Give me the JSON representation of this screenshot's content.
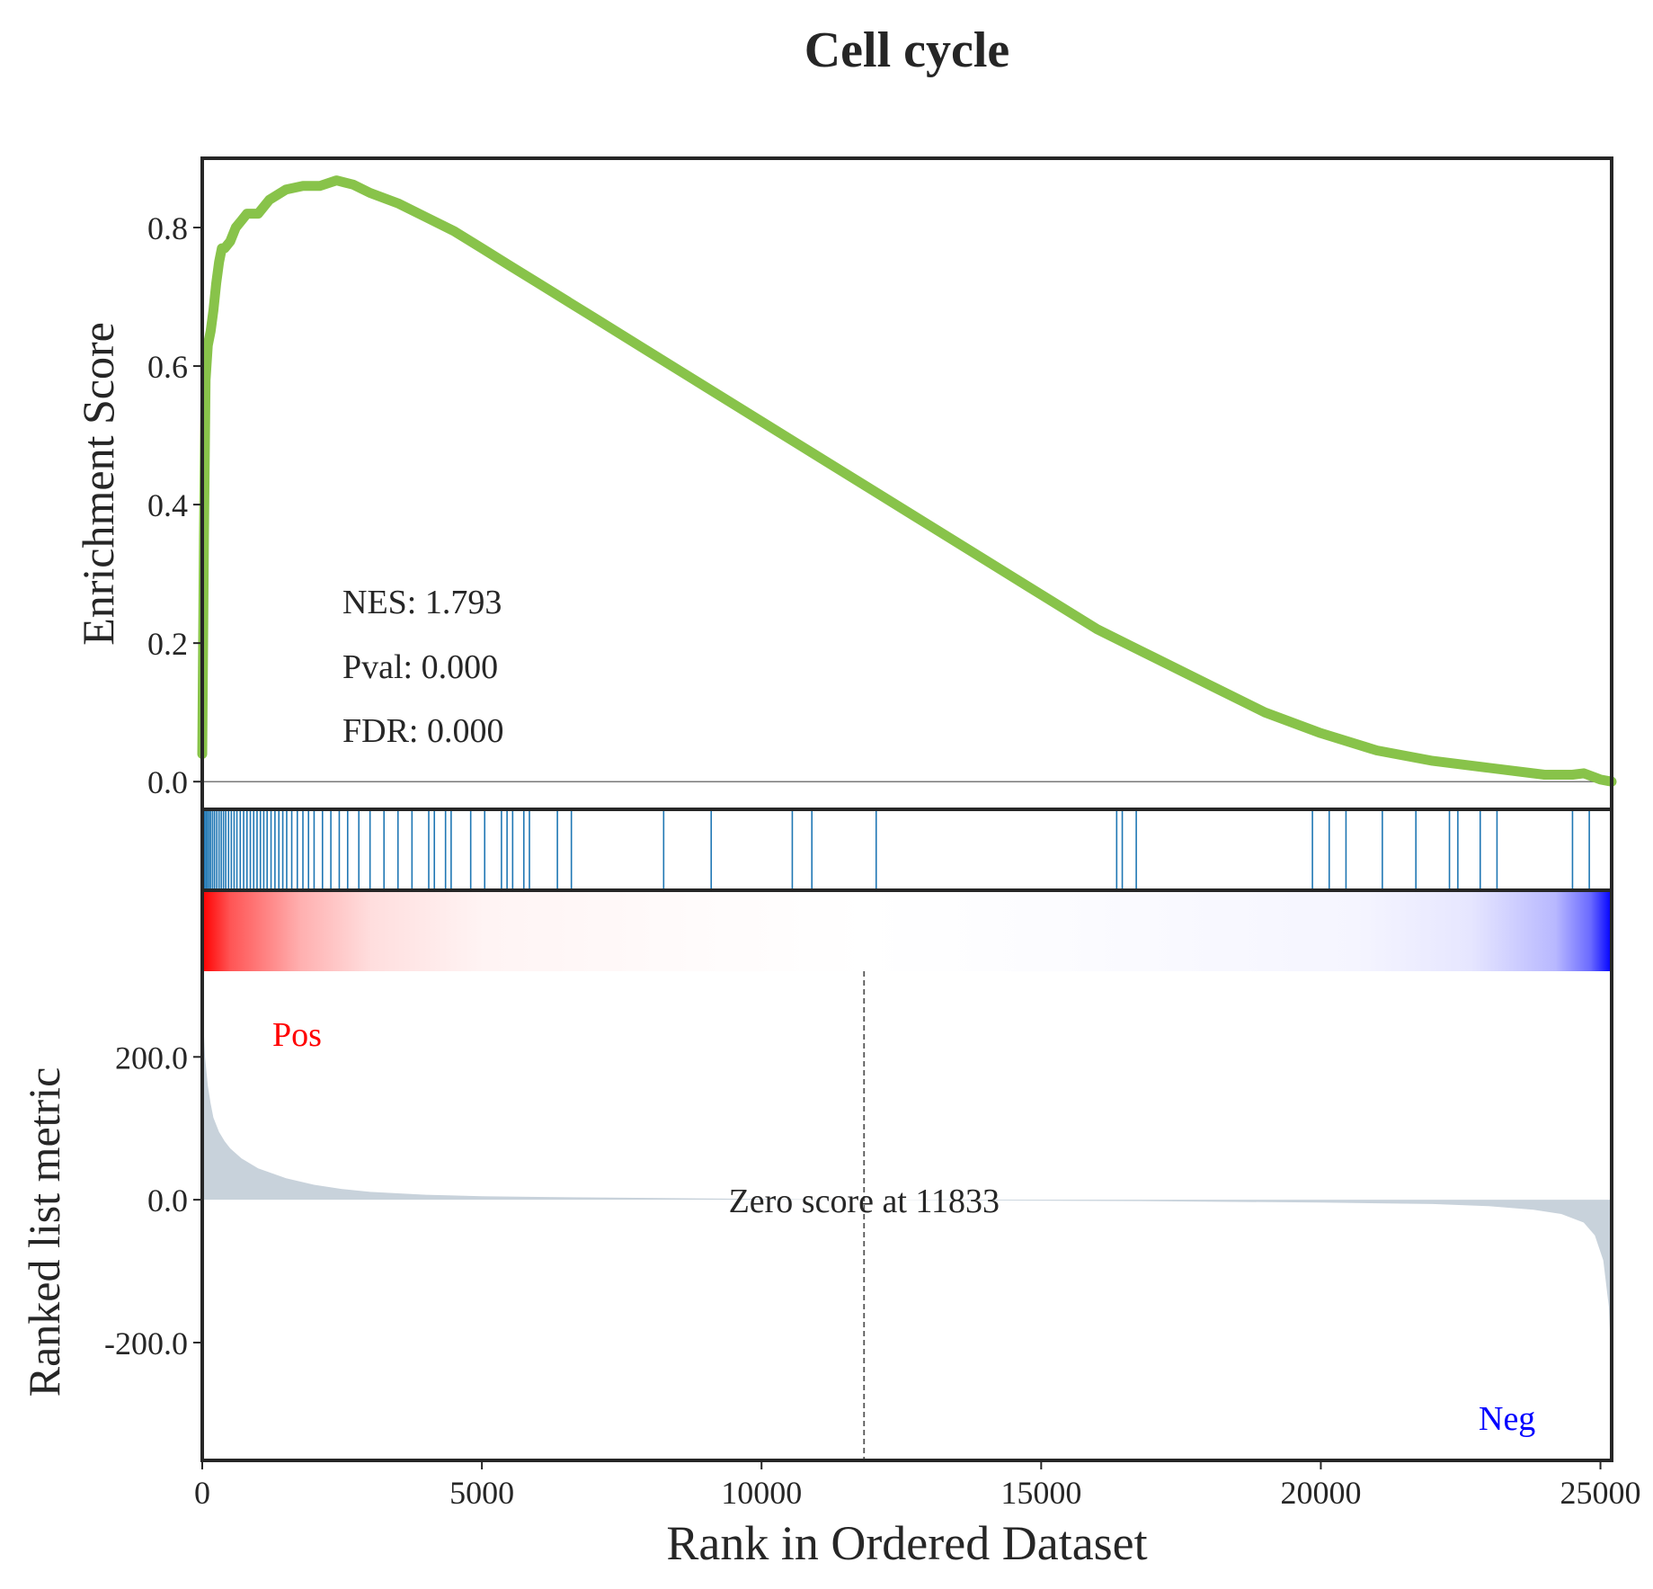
{
  "chart_data": {
    "type": "line",
    "title": "Cell cycle",
    "xlabel": "Rank in Ordered Dataset",
    "xlim": [
      0,
      25200
    ],
    "x_ticks": [
      0,
      5000,
      10000,
      15000,
      20000,
      25000
    ],
    "x_tick_labels": [
      "0",
      "5000",
      "10000",
      "15000",
      "20000",
      "25000"
    ],
    "panels": {
      "enrichment": {
        "ylabel": "Enrichment Score",
        "ylim": [
          -0.04,
          0.9
        ],
        "y_ticks": [
          0.0,
          0.2,
          0.4,
          0.6,
          0.8
        ],
        "y_tick_labels": [
          "0.0",
          "0.2",
          "0.4",
          "0.6",
          "0.8"
        ],
        "line_color": "#88c34a",
        "series": [
          {
            "x": [
              0,
              30,
              60,
              100,
              150,
              200,
              250,
              300,
              350,
              400,
              500,
              600,
              700,
              800,
              1000,
              1200,
              1500,
              1800,
              2100,
              2400,
              2700,
              3000,
              3500,
              4000,
              4500,
              5000,
              5500,
              6000,
              7000,
              8000,
              9000,
              10000,
              11000,
              12000,
              13000,
              14000,
              15000,
              16000,
              17000,
              18000,
              19000,
              20000,
              21000,
              22000,
              23000,
              24000,
              24500,
              24700,
              25000,
              25200
            ],
            "y": [
              0.04,
              0.35,
              0.58,
              0.63,
              0.65,
              0.68,
              0.72,
              0.75,
              0.77,
              0.77,
              0.78,
              0.8,
              0.81,
              0.82,
              0.82,
              0.84,
              0.855,
              0.86,
              0.86,
              0.868,
              0.862,
              0.85,
              0.835,
              0.815,
              0.795,
              0.77,
              0.745,
              0.72,
              0.67,
              0.62,
              0.57,
              0.52,
              0.47,
              0.42,
              0.37,
              0.32,
              0.27,
              0.22,
              0.18,
              0.14,
              0.1,
              0.07,
              0.045,
              0.03,
              0.02,
              0.01,
              0.01,
              0.012,
              0.003,
              0.0
            ]
          }
        ]
      },
      "hits": {
        "color": "#1f77b4",
        "x": [
          15,
          40,
          65,
          90,
          120,
          150,
          185,
          220,
          260,
          300,
          340,
          380,
          420,
          470,
          520,
          570,
          620,
          680,
          740,
          800,
          860,
          920,
          980,
          1040,
          1100,
          1160,
          1230,
          1300,
          1370,
          1440,
          1510,
          1600,
          1700,
          1800,
          1900,
          2000,
          2150,
          2300,
          2450,
          2600,
          2800,
          3000,
          3250,
          3500,
          3750,
          4050,
          4150,
          4350,
          4450,
          4800,
          5050,
          5350,
          5450,
          5550,
          5750,
          5850,
          6350,
          6600,
          8250,
          9100,
          10550,
          10900,
          12050,
          16350,
          16450,
          16700,
          19850,
          20150,
          20450,
          21100,
          21700,
          22300,
          22450,
          22850,
          23150,
          24500,
          24800
        ]
      },
      "rank_bar": {
        "pos_color": "#ff0000",
        "neg_color": "#0000ff"
      },
      "ranked_metric": {
        "ylabel": "Ranked list metric",
        "ylim": [
          -365,
          320
        ],
        "y_ticks": [
          200,
          0,
          -200
        ],
        "y_tick_labels": [
          "200.0",
          "0.0",
          "-200.0"
        ],
        "fill_color": "#c8d2db",
        "x": [
          0,
          20,
          50,
          100,
          150,
          200,
          300,
          400,
          500,
          700,
          1000,
          1500,
          2000,
          2500,
          3000,
          4000,
          5000,
          6000,
          8000,
          10000,
          11833,
          14000,
          17000,
          20000,
          22000,
          23000,
          23800,
          24300,
          24700,
          24900,
          25050,
          25150,
          25200
        ],
        "y": [
          295,
          250,
          200,
          160,
          135,
          115,
          95,
          82,
          72,
          58,
          44,
          30,
          21,
          15,
          11,
          7,
          5,
          4,
          2.5,
          1,
          0,
          -1,
          -2,
          -4,
          -6,
          -9,
          -14,
          -20,
          -32,
          -50,
          -85,
          -150,
          -240
        ],
        "zero_cross_x": 11833,
        "zero_label": "Zero score at 11833",
        "pos_label": "Pos",
        "neg_label": "Neg",
        "pos_label_color": "#ff0000",
        "neg_label_color": "#0000ff"
      }
    },
    "annotations": [
      "NES: 1.793",
      "Pval: 0.000",
      "FDR: 0.000"
    ]
  }
}
